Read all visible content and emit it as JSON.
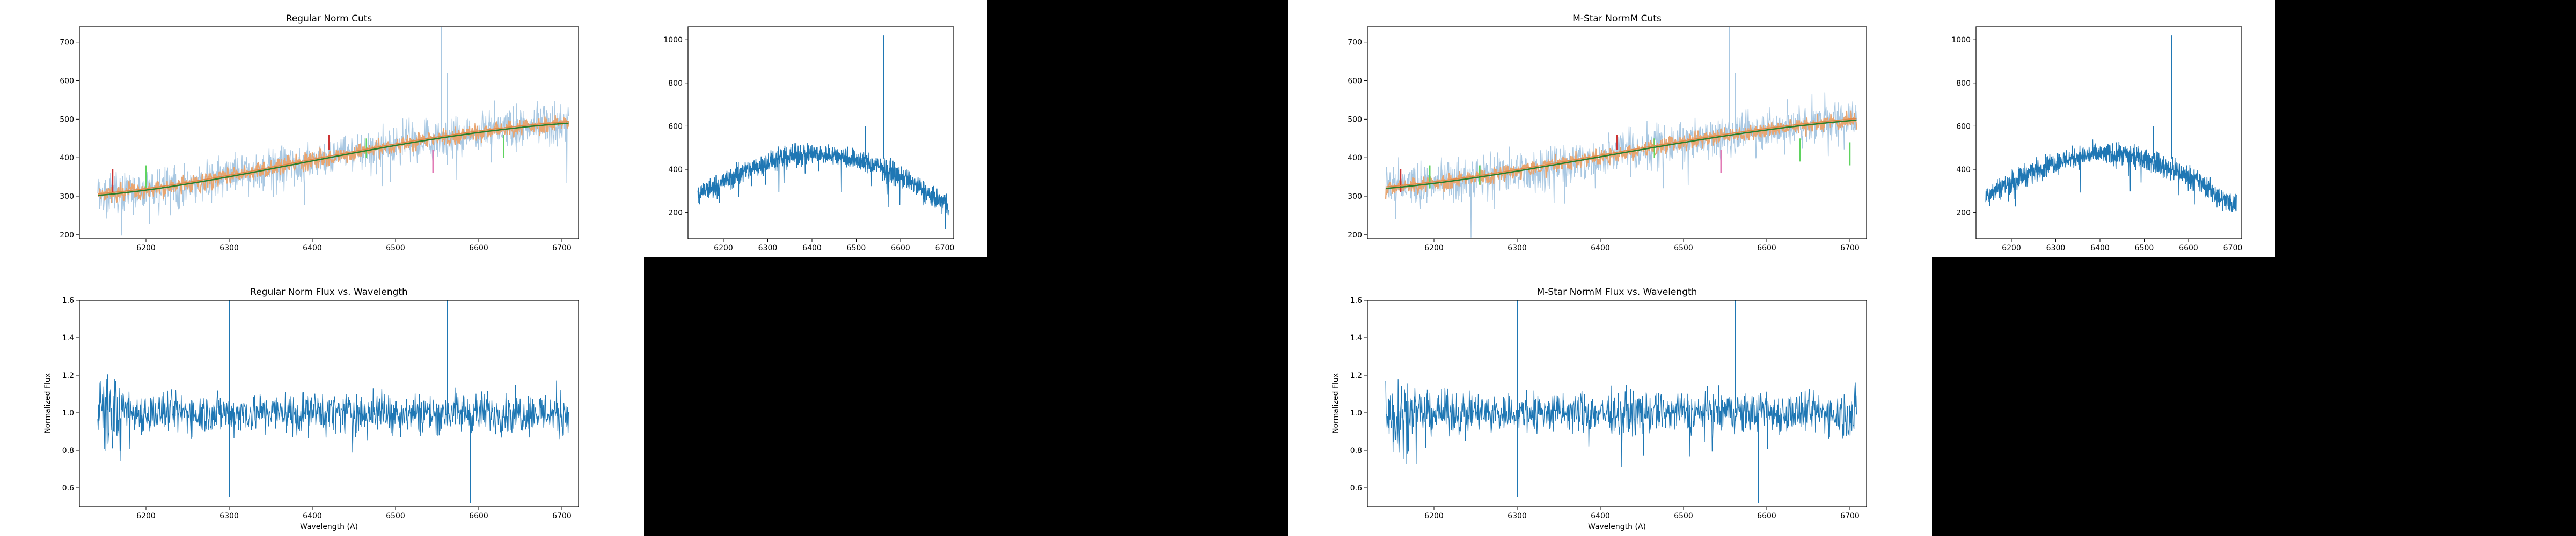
{
  "colors": {
    "flux": "#1f77b4",
    "flux_light": "#a9c8e2",
    "cut_orange": "#e8a571",
    "fit_green": "#2a7d2a",
    "fit_orange": "#e08a4a",
    "marker_green": "#5fd35f",
    "marker_red": "#cc3333",
    "marker_pink": "#e27ab5",
    "marker_blue": "#7fa8e8",
    "background": "#000000",
    "axes_bg": "#ffffff"
  },
  "chart_data": [
    {
      "id": "regular-cuts",
      "type": "line",
      "title": "Regular Norm Cuts",
      "xlabel": "",
      "ylabel": "",
      "xlim": [
        6120,
        6720
      ],
      "ylim": [
        190,
        740
      ],
      "xticks": [
        "6200",
        "6300",
        "6400",
        "6500",
        "6600",
        "6700"
      ],
      "yticks": [
        "200",
        "300",
        "400",
        "500",
        "600",
        "700"
      ],
      "fit_coeffs": [
        400,
        120,
        -10,
        -25,
        5
      ],
      "spikes": [
        {
          "x": 6555,
          "y": 740
        },
        {
          "x": 6562,
          "y": 620
        }
      ],
      "markers": [
        {
          "x": 6160,
          "y0": 310,
          "y1": 370,
          "color": "#cc3333"
        },
        {
          "x": 6200,
          "y0": 320,
          "y1": 380,
          "color": "#5fd35f"
        },
        {
          "x": 6420,
          "y0": 420,
          "y1": 460,
          "color": "#cc3333"
        },
        {
          "x": 6465,
          "y0": 400,
          "y1": 450,
          "color": "#5fd35f"
        },
        {
          "x": 6545,
          "y0": 360,
          "y1": 420,
          "color": "#e27ab5"
        },
        {
          "x": 6630,
          "y0": 400,
          "y1": 460,
          "color": "#5fd35f"
        }
      ]
    },
    {
      "id": "regular-flux",
      "type": "line",
      "title": "",
      "xlabel": "",
      "ylabel": "",
      "xlim": [
        6120,
        6720
      ],
      "ylim": [
        80,
        1060
      ],
      "xticks": [
        "6200",
        "6300",
        "6400",
        "6500",
        "6600",
        "6700"
      ],
      "yticks": [
        "200",
        "400",
        "600",
        "800",
        "1000"
      ],
      "spikes": [
        {
          "x": 6562,
          "y": 1020
        },
        {
          "x": 6520,
          "y": 600
        }
      ]
    },
    {
      "id": "regular-normflux",
      "type": "line",
      "title": "Regular Norm Flux vs. Wavelength",
      "xlabel": "Wavelength (A)",
      "ylabel": "Normalized Flux",
      "xlim": [
        6120,
        6720
      ],
      "ylim": [
        0.5,
        1.6
      ],
      "xticks": [
        "6200",
        "6300",
        "6400",
        "6500",
        "6600",
        "6700"
      ],
      "yticks": [
        "0.6",
        "0.8",
        "1.0",
        "1.2",
        "1.4",
        "1.6"
      ],
      "spikes": [
        {
          "x": 6300,
          "y": 1.6
        },
        {
          "x": 6562,
          "y": 1.6
        },
        {
          "x": 6300,
          "y": 0.55
        },
        {
          "x": 6590,
          "y": 0.52
        }
      ]
    },
    {
      "id": "mstar-cuts",
      "type": "line",
      "title": "M-Star NormM Cuts",
      "xlabel": "",
      "ylabel": "",
      "xlim": [
        6120,
        6720
      ],
      "ylim": [
        190,
        740
      ],
      "xticks": [
        "6200",
        "6300",
        "6400",
        "6500",
        "6600",
        "6700"
      ],
      "yticks": [
        "200",
        "300",
        "400",
        "500",
        "600",
        "700"
      ],
      "fit_coeffs": [
        410,
        110,
        -5,
        -20,
        3
      ],
      "spikes": [
        {
          "x": 6555,
          "y": 740
        },
        {
          "x": 6562,
          "y": 620
        }
      ],
      "markers": [
        {
          "x": 6160,
          "y0": 310,
          "y1": 370,
          "color": "#cc3333"
        },
        {
          "x": 6195,
          "y0": 320,
          "y1": 380,
          "color": "#5fd35f"
        },
        {
          "x": 6255,
          "y0": 330,
          "y1": 380,
          "color": "#5fd35f"
        },
        {
          "x": 6420,
          "y0": 420,
          "y1": 460,
          "color": "#cc3333"
        },
        {
          "x": 6465,
          "y0": 400,
          "y1": 450,
          "color": "#5fd35f"
        },
        {
          "x": 6545,
          "y0": 360,
          "y1": 420,
          "color": "#e27ab5"
        },
        {
          "x": 6640,
          "y0": 390,
          "y1": 450,
          "color": "#5fd35f"
        },
        {
          "x": 6700,
          "y0": 380,
          "y1": 440,
          "color": "#5fd35f"
        }
      ]
    },
    {
      "id": "mstar-flux",
      "type": "line",
      "title": "",
      "xlabel": "",
      "ylabel": "",
      "xlim": [
        6120,
        6720
      ],
      "ylim": [
        80,
        1060
      ],
      "xticks": [
        "6200",
        "6300",
        "6400",
        "6500",
        "6600",
        "6700"
      ],
      "yticks": [
        "200",
        "400",
        "600",
        "800",
        "1000"
      ],
      "spikes": [
        {
          "x": 6562,
          "y": 1020
        },
        {
          "x": 6520,
          "y": 600
        }
      ]
    },
    {
      "id": "mstar-normflux",
      "type": "line",
      "title": "M-Star NormM Flux vs. Wavelength",
      "xlabel": "Wavelength (A)",
      "ylabel": "Normalized Flux",
      "xlim": [
        6120,
        6720
      ],
      "ylim": [
        0.5,
        1.6
      ],
      "xticks": [
        "6200",
        "6300",
        "6400",
        "6500",
        "6600",
        "6700"
      ],
      "yticks": [
        "0.6",
        "0.8",
        "1.0",
        "1.2",
        "1.4",
        "1.6"
      ],
      "spikes": [
        {
          "x": 6300,
          "y": 1.6
        },
        {
          "x": 6562,
          "y": 1.6
        },
        {
          "x": 6300,
          "y": 0.55
        },
        {
          "x": 6590,
          "y": 0.52
        }
      ]
    }
  ]
}
